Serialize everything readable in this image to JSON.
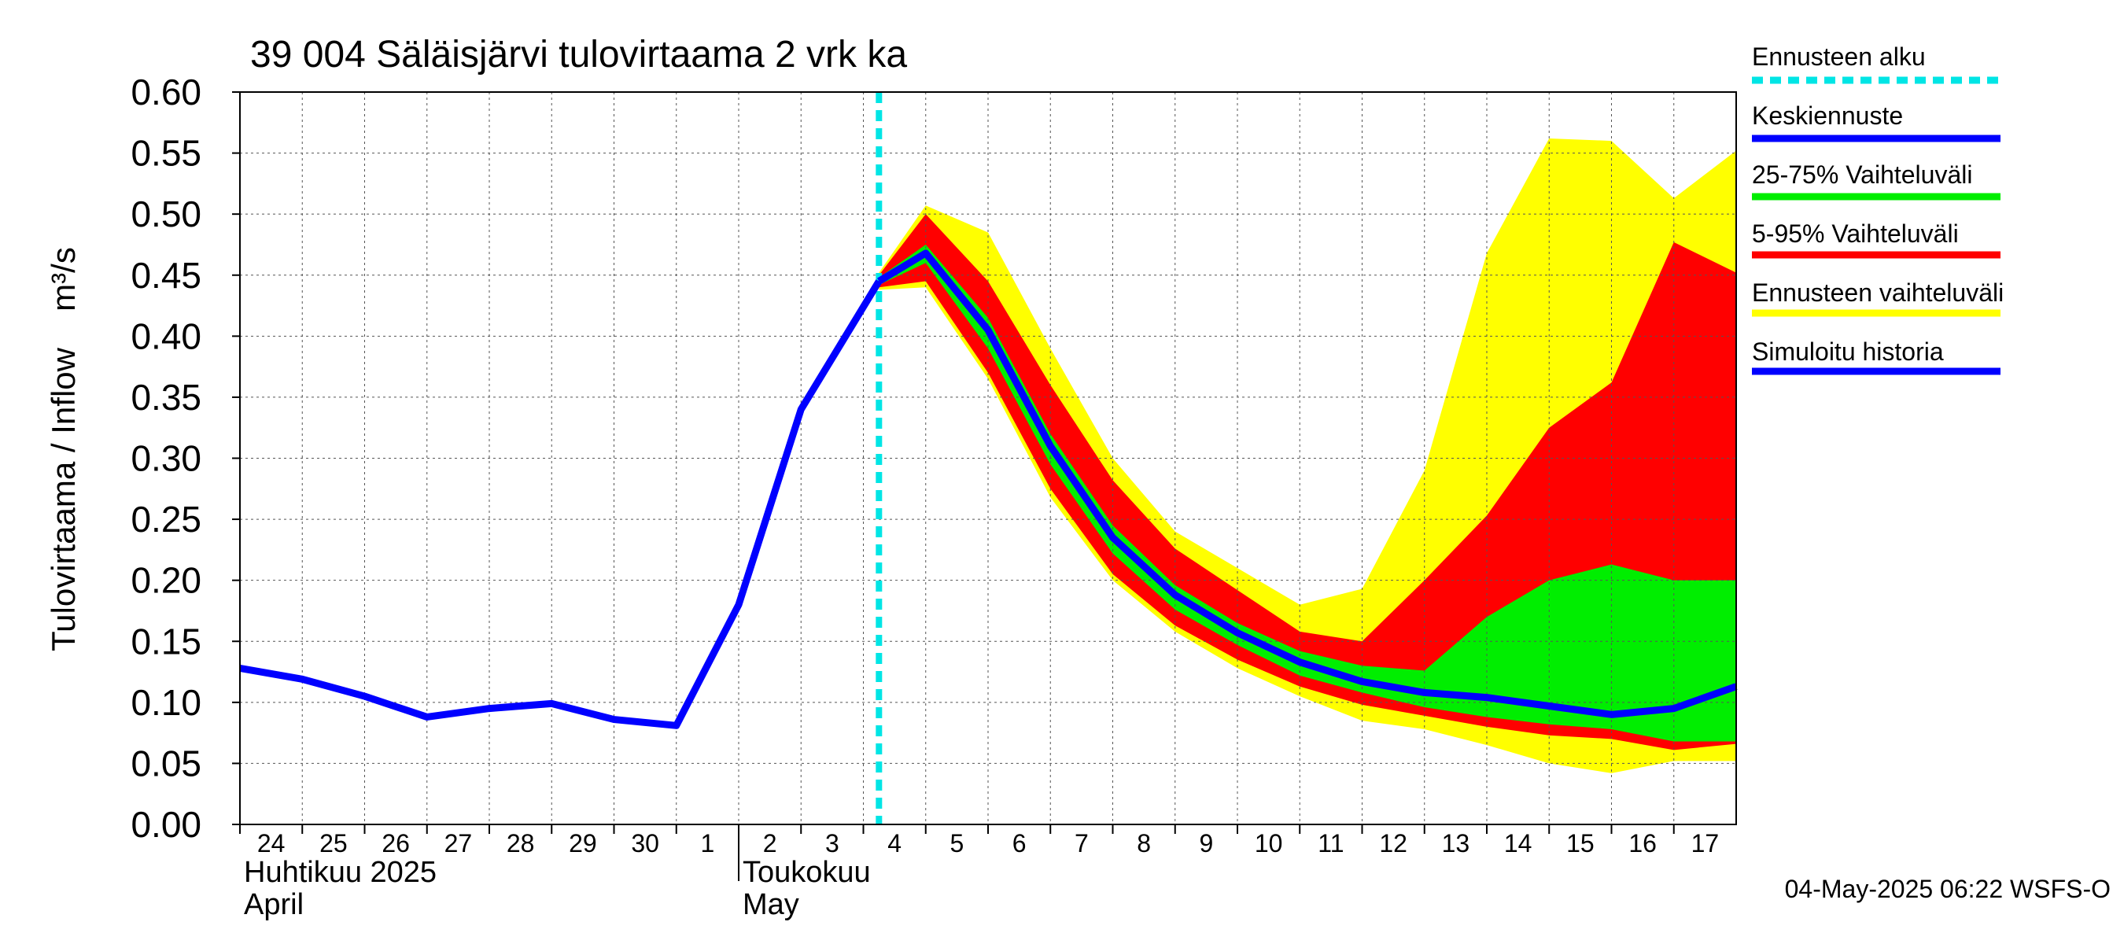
{
  "chart_data": {
    "type": "area",
    "title": "39 004 Säläisjärvi tulovirtaama 2 vrk ka",
    "ylabel": "Tulovirtaama / Inflow",
    "yunit": "m³/s",
    "ylim": [
      0,
      0.6
    ],
    "yticks": [
      "0.00",
      "0.05",
      "0.10",
      "0.15",
      "0.20",
      "0.25",
      "0.30",
      "0.35",
      "0.40",
      "0.45",
      "0.50",
      "0.55",
      "0.60"
    ],
    "grid": true,
    "x_start": "2025-04-24",
    "x_end": "2025-05-17 24:00",
    "xtick_labels": [
      "24",
      "25",
      "26",
      "27",
      "28",
      "29",
      "30",
      "1",
      "2",
      "3",
      "4",
      "5",
      "6",
      "7",
      "8",
      "9",
      "10",
      "11",
      "12",
      "13",
      "14",
      "15",
      "16",
      "17"
    ],
    "month_labels": [
      {
        "fi": "Huhtikuu  2025",
        "en": "April",
        "date": "2025-04-24"
      },
      {
        "fi": "Toukokuu",
        "en": "May",
        "date": "2025-05-02"
      }
    ],
    "forecast_start": "2025-05-04 06:00",
    "timestamp": "04-May-2025 06:22 WSFS-O",
    "colors": {
      "forecast_start": "#00e5e5",
      "mean": "#0000ff",
      "iqr": "#00ee00",
      "p5_95": "#ff0000",
      "range": "#ffff00",
      "history": "#0000ff"
    },
    "legend": [
      {
        "label": "Ennusteen alku",
        "key": "forecast_start",
        "style": "dashed"
      },
      {
        "label": "Keskiennuste",
        "key": "mean",
        "style": "solid"
      },
      {
        "label": "25-75% Vaihteluväli",
        "key": "iqr",
        "style": "solid"
      },
      {
        "label": "5-95% Vaihteluväli",
        "key": "p5_95",
        "style": "solid"
      },
      {
        "label": "Ennusteen vaihteluväli",
        "key": "range",
        "style": "solid"
      },
      {
        "label": "Simuloitu historia",
        "key": "history",
        "style": "solid"
      }
    ],
    "history": {
      "x": [
        "2025-04-24",
        "2025-04-25",
        "2025-04-26",
        "2025-04-27",
        "2025-04-28",
        "2025-04-29",
        "2025-04-30",
        "2025-05-01",
        "2025-05-02",
        "2025-05-03",
        "2025-05-04 06:00"
      ],
      "y": [
        0.128,
        0.119,
        0.105,
        0.088,
        0.095,
        0.099,
        0.086,
        0.081,
        0.18,
        0.34,
        0.445
      ]
    },
    "forecast": {
      "x": [
        "2025-05-04 06:00",
        "2025-05-05",
        "2025-05-06",
        "2025-05-07",
        "2025-05-08",
        "2025-05-09",
        "2025-05-10",
        "2025-05-11",
        "2025-05-12",
        "2025-05-13",
        "2025-05-14",
        "2025-05-15",
        "2025-05-16",
        "2025-05-17",
        "2025-05-17 24:00"
      ],
      "mean": [
        0.445,
        0.468,
        0.405,
        0.31,
        0.235,
        0.188,
        0.157,
        0.133,
        0.117,
        0.108,
        0.104,
        0.097,
        0.09,
        0.095,
        0.113
      ],
      "p25": [
        0.442,
        0.46,
        0.39,
        0.295,
        0.222,
        0.176,
        0.147,
        0.122,
        0.108,
        0.096,
        0.088,
        0.082,
        0.078,
        0.068,
        0.068
      ],
      "p75": [
        0.448,
        0.475,
        0.415,
        0.32,
        0.245,
        0.196,
        0.165,
        0.142,
        0.13,
        0.126,
        0.17,
        0.2,
        0.213,
        0.2,
        0.2
      ],
      "p05": [
        0.44,
        0.445,
        0.37,
        0.275,
        0.205,
        0.163,
        0.135,
        0.113,
        0.098,
        0.089,
        0.08,
        0.073,
        0.07,
        0.061,
        0.066
      ],
      "p95": [
        0.45,
        0.5,
        0.445,
        0.36,
        0.282,
        0.226,
        0.192,
        0.158,
        0.15,
        0.2,
        0.253,
        0.325,
        0.362,
        0.477,
        0.452
      ],
      "min": [
        0.438,
        0.44,
        0.365,
        0.268,
        0.2,
        0.158,
        0.128,
        0.105,
        0.085,
        0.078,
        0.065,
        0.05,
        0.042,
        0.052,
        0.052
      ],
      "max": [
        0.452,
        0.507,
        0.485,
        0.39,
        0.3,
        0.24,
        0.21,
        0.18,
        0.193,
        0.29,
        0.468,
        0.562,
        0.56,
        0.513,
        0.552
      ]
    }
  }
}
